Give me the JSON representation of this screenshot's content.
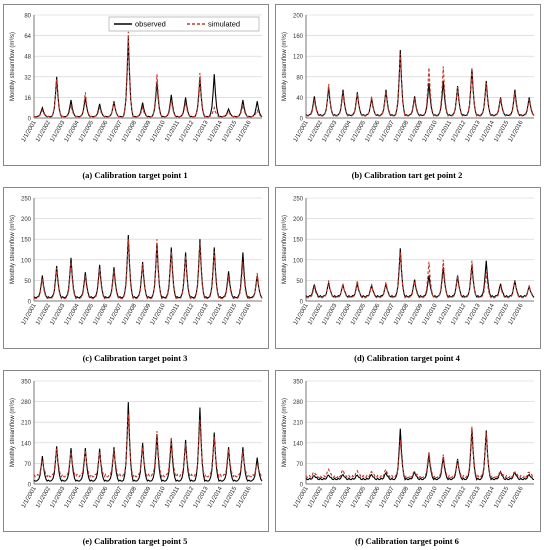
{
  "legend": {
    "observed": "observed",
    "simulated": "simulated"
  },
  "colors": {
    "observed": "#000000",
    "simulated": "#c0392b",
    "grid": "#cfcfcf"
  },
  "x_tick_labels": [
    "1/1/2001",
    "1/1/2002",
    "1/1/2003",
    "1/1/2004",
    "1/1/2005",
    "1/1/2006",
    "1/1/2007",
    "1/1/2008",
    "1/1/2009",
    "1/1/2010",
    "1/1/2011",
    "1/1/2012",
    "1/1/2013",
    "1/1/2014",
    "1/1/2015",
    "1/1/2016"
  ],
  "chart_data": [
    {
      "type": "line",
      "caption": "(a) Calibration target point 1",
      "ylabel": "Monthly streamflow (m³/s)",
      "ylim": [
        0,
        80
      ],
      "yticks": [
        0,
        16,
        32,
        48,
        64,
        80
      ],
      "legend_position": "top-right",
      "grid": true,
      "observed_peaks": [
        8,
        32,
        14,
        16,
        11,
        13,
        62,
        12,
        28,
        18,
        16,
        31,
        34,
        7,
        14,
        13
      ],
      "simulated_peaks": [
        6,
        30,
        10,
        20,
        8,
        12,
        67,
        8,
        34,
        14,
        12,
        35,
        8,
        5,
        10,
        6
      ],
      "base_observed": 1,
      "base_simulated": 1
    },
    {
      "type": "line",
      "caption": "(b) Calibration tart get point 2",
      "ylabel": "Monthly streamflow (m³/s)",
      "ylim": [
        0,
        200
      ],
      "yticks": [
        0,
        40,
        80,
        120,
        160,
        200
      ],
      "grid": true,
      "observed_peaks": [
        42,
        60,
        55,
        50,
        38,
        55,
        132,
        42,
        68,
        72,
        62,
        96,
        72,
        40,
        55,
        40
      ],
      "simulated_peaks": [
        36,
        66,
        50,
        48,
        42,
        52,
        125,
        38,
        98,
        100,
        60,
        98,
        68,
        38,
        50,
        36
      ],
      "base_observed": 5,
      "base_simulated": 4
    },
    {
      "type": "line",
      "caption": "(c) Calibration target point 3",
      "ylabel": "Monthly streamflow (m³/s)",
      "ylim": [
        0,
        250
      ],
      "yticks": [
        0,
        50,
        100,
        150,
        200,
        250
      ],
      "grid": true,
      "observed_peaks": [
        62,
        85,
        105,
        70,
        88,
        82,
        160,
        95,
        140,
        130,
        118,
        150,
        130,
        72,
        118,
        62
      ],
      "simulated_peaks": [
        55,
        80,
        95,
        62,
        80,
        75,
        150,
        90,
        150,
        120,
        110,
        142,
        120,
        62,
        95,
        68
      ],
      "base_observed": 8,
      "base_simulated": 6
    },
    {
      "type": "line",
      "caption": "(d) Calibration target point 4",
      "ylabel": "Monthly streamflow (m³/s)",
      "ylim": [
        0,
        250
      ],
      "yticks": [
        0,
        50,
        100,
        150,
        200,
        250
      ],
      "grid": true,
      "observed_peaks": [
        40,
        45,
        40,
        42,
        38,
        42,
        128,
        52,
        62,
        82,
        62,
        88,
        98,
        42,
        50,
        35
      ],
      "simulated_peaks": [
        34,
        50,
        42,
        50,
        40,
        46,
        118,
        48,
        95,
        100,
        60,
        98,
        70,
        36,
        48,
        38
      ],
      "base_observed": 10,
      "base_simulated": 8
    },
    {
      "type": "line",
      "caption": "(e) Calibration target point 5",
      "ylabel": "Monthly streamflow (m³/s)",
      "ylim": [
        0,
        350
      ],
      "yticks": [
        0,
        70,
        140,
        210,
        280,
        350
      ],
      "grid": true,
      "observed_peaks": [
        95,
        128,
        122,
        122,
        120,
        125,
        278,
        140,
        170,
        150,
        150,
        260,
        175,
        125,
        125,
        90
      ],
      "simulated_peaks": [
        82,
        120,
        110,
        115,
        110,
        118,
        238,
        125,
        180,
        160,
        138,
        220,
        160,
        118,
        112,
        70
      ],
      "base_observed": 10,
      "base_simulated": 25
    },
    {
      "type": "line",
      "caption": "(f) Calibration target point 6",
      "ylabel": "Monthly streamflow (m³/s)",
      "ylim": [
        0,
        350
      ],
      "yticks": [
        0,
        70,
        140,
        210,
        280,
        350
      ],
      "grid": true,
      "observed_peaks": [
        28,
        30,
        32,
        30,
        32,
        38,
        188,
        40,
        100,
        92,
        85,
        190,
        182,
        42,
        40,
        32
      ],
      "simulated_peaks": [
        40,
        50,
        48,
        45,
        42,
        50,
        150,
        42,
        110,
        100,
        82,
        195,
        175,
        40,
        40,
        40
      ],
      "base_observed": 15,
      "base_simulated": 22
    }
  ]
}
